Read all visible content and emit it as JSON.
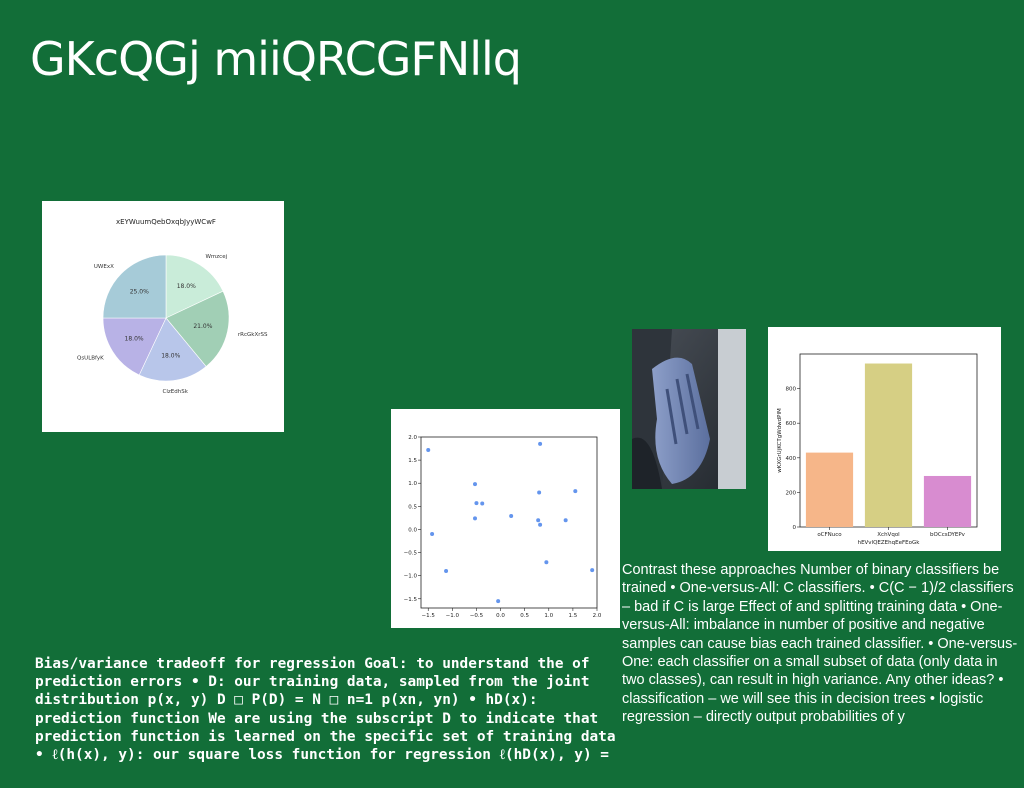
{
  "slide": {
    "title": "GKcQGj miiQRCGFNllq",
    "right_text": "Contrast these approaches Number of binary classifiers be trained • One-versus-All: C classifiers. • C(C − 1)/2 classifiers – bad if C is large Effect of and splitting training data • One-versus-All: imbalance in number of positive and negative samples can cause bias each trained classifier. • One-versus-One: each classifier on a small subset of data (only data in two classes), can result in high variance. Any other ideas? • classification – we will see this in decision trees • logistic regression – directly output probabilities of y",
    "left_text": "Bias/variance tradeoff for regression Goal: to understand the of prediction errors • D: our training data, sampled from the joint distribution p(x, y) D □ P(D) = N □ n=1 p(xn, yn) • hD(x): prediction function We are using the subscript D to indicate that prediction function is learned on the specific set of training data • ℓ(h(x), y): our square loss function for regression ℓ(hD(x), y) ="
  },
  "colors": {
    "background": "#126e38",
    "text": "#ffffff"
  },
  "chart_data": [
    {
      "type": "pie",
      "title": "xEYWuumQebOxqbJyyWCwF",
      "slices": [
        {
          "label": "Wmzcej",
          "value": 18.0,
          "display": "18.0%",
          "color": "#c9ecd9"
        },
        {
          "label": "rRcGkXrSS",
          "value": 21.0,
          "display": "21.0%",
          "color": "#a1cfb5"
        },
        {
          "label": "ClzEdhSk",
          "value": 18.0,
          "display": "18.0%",
          "color": "#b8c6ea"
        },
        {
          "label": "QsULBfyK",
          "value": 18.0,
          "display": "18.0%",
          "color": "#b8b2e6"
        },
        {
          "label": "UWExX",
          "value": 25.0,
          "display": "25.0%",
          "color": "#a6cbd8"
        }
      ]
    },
    {
      "type": "scatter",
      "title": "",
      "xlabel": "",
      "ylabel": "",
      "xlim": [
        -1.65,
        2.0
      ],
      "ylim": [
        -1.7,
        2.0
      ],
      "xticks": [
        -1.5,
        -1.0,
        -0.5,
        0.0,
        0.5,
        1.0,
        1.5,
        2.0
      ],
      "xtick_labels": [
        "−1.5",
        "−1.0",
        "−0.5",
        "0.0",
        "0.5",
        "1.0",
        "1.5",
        "2.0"
      ],
      "yticks": [
        -1.5,
        -1.0,
        -0.5,
        0.0,
        0.5,
        1.0,
        1.5,
        2.0
      ],
      "ytick_labels": [
        "−1.5",
        "−1.0",
        "−0.5",
        "0.0",
        "0.5",
        "1.0",
        "1.5",
        "2.0"
      ],
      "color": "#6495ed",
      "points": [
        [
          -1.5,
          1.72
        ],
        [
          -1.42,
          -0.1
        ],
        [
          -1.13,
          -0.9
        ],
        [
          -0.53,
          0.98
        ],
        [
          -0.5,
          0.57
        ],
        [
          -0.53,
          0.24
        ],
        [
          -0.38,
          0.56
        ],
        [
          -0.05,
          -1.55
        ],
        [
          0.22,
          0.29
        ],
        [
          0.78,
          0.2
        ],
        [
          0.82,
          0.1
        ],
        [
          0.8,
          0.8
        ],
        [
          0.82,
          1.85
        ],
        [
          0.95,
          -0.71
        ],
        [
          1.35,
          0.2
        ],
        [
          1.55,
          0.83
        ],
        [
          1.9,
          -0.88
        ]
      ]
    },
    {
      "type": "bar",
      "title": "",
      "xlabel": "hEVvlQEZEhqEeFEoGk",
      "ylabel": "wKXGrUjKCTgWdwdPlM",
      "categories": [
        "oCFNuco",
        "XchVqol",
        "bOCcsDYEPv"
      ],
      "values": [
        430,
        945,
        295
      ],
      "colors": [
        "#f6b689",
        "#d6cf84",
        "#d88cd0"
      ],
      "ylim": [
        0,
        1000
      ],
      "yticks": [
        0,
        200,
        400,
        600,
        800
      ],
      "ytick_labels": [
        "0",
        "200",
        "400",
        "600",
        "800"
      ]
    }
  ]
}
